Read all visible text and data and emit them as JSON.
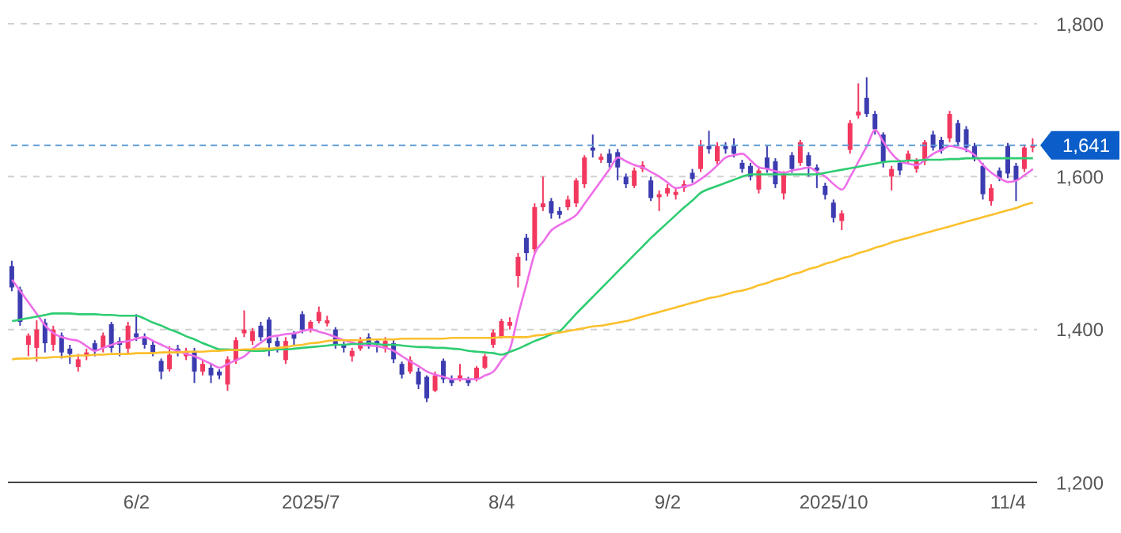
{
  "chart_data": {
    "type": "candlestick",
    "categories": [
      null,
      null,
      null,
      null,
      null,
      null,
      null,
      null,
      null,
      null,
      null,
      null,
      null,
      null,
      null,
      "6/2",
      null,
      null,
      null,
      null,
      null,
      null,
      null,
      null,
      null,
      null,
      null,
      null,
      null,
      null,
      null,
      null,
      null,
      null,
      null,
      null,
      "2025/7",
      null,
      null,
      null,
      null,
      null,
      null,
      null,
      null,
      null,
      null,
      null,
      null,
      null,
      null,
      null,
      null,
      null,
      null,
      null,
      null,
      null,
      null,
      "8/4",
      null,
      null,
      null,
      null,
      null,
      null,
      null,
      null,
      null,
      null,
      null,
      null,
      null,
      null,
      null,
      null,
      null,
      null,
      null,
      "9/2",
      null,
      null,
      null,
      null,
      null,
      null,
      null,
      null,
      null,
      null,
      null,
      null,
      null,
      null,
      null,
      null,
      null,
      null,
      null,
      "2025/10",
      null,
      null,
      null,
      null,
      null,
      null,
      null,
      null,
      null,
      null,
      null,
      null,
      null,
      null,
      null,
      null,
      null,
      null,
      null,
      null,
      "11/4",
      null,
      null,
      null
    ],
    "ohlc": [
      [
        1483,
        1490,
        1450,
        1455
      ],
      [
        1452,
        1456,
        1405,
        1410
      ],
      [
        1380,
        1395,
        1365,
        1392
      ],
      [
        1376,
        1412,
        1358,
        1400
      ],
      [
        1409,
        1414,
        1370,
        1382
      ],
      [
        1380,
        1405,
        1372,
        1400
      ],
      [
        1392,
        1396,
        1362,
        1370
      ],
      [
        1375,
        1380,
        1355,
        1368
      ],
      [
        1351,
        1368,
        1345,
        1361
      ],
      [
        1365,
        1375,
        1360,
        1370
      ],
      [
        1382,
        1386,
        1365,
        1372
      ],
      [
        1376,
        1396,
        1370,
        1392
      ],
      [
        1407,
        1410,
        1370,
        1376
      ],
      [
        1385,
        1390,
        1365,
        1380
      ],
      [
        1375,
        1410,
        1368,
        1405
      ],
      [
        1395,
        1420,
        1385,
        1390
      ],
      [
        1390,
        1395,
        1375,
        1380
      ],
      [
        1380,
        1384,
        1365,
        1370
      ],
      [
        1359,
        1362,
        1335,
        1345
      ],
      [
        1348,
        1378,
        1345,
        1367
      ],
      [
        1375,
        1380,
        1365,
        1370
      ],
      [
        1365,
        1376,
        1360,
        1372
      ],
      [
        1372,
        1376,
        1330,
        1345
      ],
      [
        1345,
        1360,
        1340,
        1355
      ],
      [
        1350,
        1355,
        1330,
        1340
      ],
      [
        1345,
        1348,
        1335,
        1340
      ],
      [
        1328,
        1365,
        1320,
        1361
      ],
      [
        1359,
        1390,
        1355,
        1386
      ],
      [
        1395,
        1425,
        1390,
        1400
      ],
      [
        1385,
        1402,
        1380,
        1398
      ],
      [
        1405,
        1410,
        1385,
        1390
      ],
      [
        1413,
        1416,
        1365,
        1382
      ],
      [
        1385,
        1390,
        1370,
        1378
      ],
      [
        1360,
        1390,
        1355,
        1385
      ],
      [
        1395,
        1398,
        1380,
        1388
      ],
      [
        1420,
        1424,
        1395,
        1400
      ],
      [
        1400,
        1412,
        1396,
        1410
      ],
      [
        1411,
        1430,
        1408,
        1423
      ],
      [
        1408,
        1418,
        1404,
        1412
      ],
      [
        1400,
        1403,
        1375,
        1380
      ],
      [
        1380,
        1384,
        1370,
        1376
      ],
      [
        1365,
        1376,
        1358,
        1372
      ],
      [
        1375,
        1390,
        1372,
        1385
      ],
      [
        1390,
        1395,
        1375,
        1380
      ],
      [
        1385,
        1388,
        1370,
        1380
      ],
      [
        1375,
        1390,
        1370,
        1385
      ],
      [
        1382,
        1386,
        1356,
        1361
      ],
      [
        1355,
        1358,
        1336,
        1341
      ],
      [
        1345,
        1365,
        1342,
        1360
      ],
      [
        1345,
        1350,
        1322,
        1328
      ],
      [
        1338,
        1340,
        1305,
        1310
      ],
      [
        1320,
        1345,
        1318,
        1340
      ],
      [
        1359,
        1362,
        1330,
        1335
      ],
      [
        1335,
        1340,
        1326,
        1330
      ],
      [
        1335,
        1355,
        1332,
        1340
      ],
      [
        1335,
        1338,
        1326,
        1330
      ],
      [
        1335,
        1352,
        1332,
        1350
      ],
      [
        1350,
        1368,
        1348,
        1365
      ],
      [
        1380,
        1400,
        1376,
        1396
      ],
      [
        1390,
        1414,
        1388,
        1411
      ],
      [
        1405,
        1416,
        1400,
        1410
      ],
      [
        1470,
        1500,
        1455,
        1495
      ],
      [
        1520,
        1525,
        1490,
        1500
      ],
      [
        1505,
        1565,
        1500,
        1560
      ],
      [
        1560,
        1600,
        1555,
        1565
      ],
      [
        1568,
        1572,
        1545,
        1552
      ],
      [
        1555,
        1560,
        1545,
        1550
      ],
      [
        1560,
        1575,
        1556,
        1570
      ],
      [
        1565,
        1598,
        1560,
        1595
      ],
      [
        1590,
        1628,
        1585,
        1625
      ],
      [
        1638,
        1655,
        1625,
        1634
      ],
      [
        1622,
        1630,
        1618,
        1626
      ],
      [
        1630,
        1636,
        1612,
        1618
      ],
      [
        1632,
        1636,
        1595,
        1612
      ],
      [
        1600,
        1604,
        1585,
        1590
      ],
      [
        1588,
        1612,
        1585,
        1608
      ],
      [
        1610,
        1620,
        1606,
        1615
      ],
      [
        1595,
        1600,
        1568,
        1572
      ],
      [
        1573,
        1582,
        1555,
        1577
      ],
      [
        1578,
        1590,
        1574,
        1585
      ],
      [
        1576,
        1584,
        1570,
        1580
      ],
      [
        1585,
        1595,
        1580,
        1590
      ],
      [
        1605,
        1610,
        1592,
        1597
      ],
      [
        1610,
        1648,
        1606,
        1640
      ],
      [
        1640,
        1660,
        1630,
        1636
      ],
      [
        1620,
        1645,
        1615,
        1640
      ],
      [
        1640,
        1645,
        1630,
        1636
      ],
      [
        1640,
        1650,
        1625,
        1630
      ],
      [
        1618,
        1622,
        1605,
        1610
      ],
      [
        1614,
        1618,
        1595,
        1600
      ],
      [
        1583,
        1612,
        1578,
        1608
      ],
      [
        1625,
        1640,
        1605,
        1610
      ],
      [
        1620,
        1624,
        1585,
        1590
      ],
      [
        1578,
        1607,
        1570,
        1603
      ],
      [
        1628,
        1632,
        1605,
        1610
      ],
      [
        1618,
        1648,
        1614,
        1645
      ],
      [
        1628,
        1632,
        1600,
        1614
      ],
      [
        1612,
        1616,
        1585,
        1608
      ],
      [
        1588,
        1592,
        1570,
        1576
      ],
      [
        1566,
        1570,
        1540,
        1546
      ],
      [
        1542,
        1556,
        1530,
        1552
      ],
      [
        1635,
        1674,
        1630,
        1670
      ],
      [
        1680,
        1722,
        1676,
        1685
      ],
      [
        1703,
        1730,
        1678,
        1682
      ],
      [
        1682,
        1686,
        1655,
        1662
      ],
      [
        1655,
        1658,
        1612,
        1618
      ],
      [
        1600,
        1614,
        1582,
        1610
      ],
      [
        1618,
        1622,
        1602,
        1608
      ],
      [
        1620,
        1634,
        1616,
        1630
      ],
      [
        1610,
        1624,
        1605,
        1620
      ],
      [
        1620,
        1648,
        1615,
        1645
      ],
      [
        1655,
        1660,
        1634,
        1638
      ],
      [
        1648,
        1652,
        1630,
        1634
      ],
      [
        1650,
        1686,
        1645,
        1682
      ],
      [
        1670,
        1674,
        1640,
        1645
      ],
      [
        1662,
        1666,
        1632,
        1638
      ],
      [
        1640,
        1644,
        1620,
        1625
      ],
      [
        1614,
        1618,
        1570,
        1577
      ],
      [
        1568,
        1590,
        1562,
        1585
      ],
      [
        1608,
        1612,
        1594,
        1598
      ],
      [
        1640,
        1644,
        1598,
        1604
      ],
      [
        1614,
        1618,
        1568,
        1595
      ],
      [
        1610,
        1642,
        1606,
        1638
      ],
      [
        1638,
        1650,
        1632,
        1641
      ]
    ],
    "colors": [
      "#3b3cb0",
      "#3b3cb0",
      "#f2385f",
      "#f2385f",
      "#3b3cb0",
      "#f2385f",
      "#3b3cb0",
      "#3b3cb0",
      "#f2385f",
      "#f2385f",
      "#3b3cb0",
      "#f2385f",
      "#3b3cb0",
      "#3b3cb0",
      "#f2385f",
      "#3b3cb0",
      "#3b3cb0",
      "#3b3cb0",
      "#3b3cb0",
      "#f2385f",
      "#3b3cb0",
      "#f2385f",
      "#3b3cb0",
      "#f2385f",
      "#3b3cb0",
      "#3b3cb0",
      "#f2385f",
      "#f2385f",
      "#f2385f",
      "#f2385f",
      "#3b3cb0",
      "#3b3cb0",
      "#3b3cb0",
      "#f2385f",
      "#3b3cb0",
      "#3b3cb0",
      "#f2385f",
      "#f2385f",
      "#f2385f",
      "#3b3cb0",
      "#3b3cb0",
      "#f2385f",
      "#f2385f",
      "#3b3cb0",
      "#3b3cb0",
      "#f2385f",
      "#3b3cb0",
      "#3b3cb0",
      "#f2385f",
      "#3b3cb0",
      "#3b3cb0",
      "#f2385f",
      "#3b3cb0",
      "#3b3cb0",
      "#f2385f",
      "#3b3cb0",
      "#f2385f",
      "#f2385f",
      "#f2385f",
      "#f2385f",
      "#f2385f",
      "#f2385f",
      "#3b3cb0",
      "#f2385f",
      "#f2385f",
      "#3b3cb0",
      "#3b3cb0",
      "#f2385f",
      "#f2385f",
      "#f2385f",
      "#3b3cb0",
      "#f2385f",
      "#3b3cb0",
      "#3b3cb0",
      "#3b3cb0",
      "#f2385f",
      "#f2385f",
      "#3b3cb0",
      "#f2385f",
      "#f2385f",
      "#f2385f",
      "#f2385f",
      "#3b3cb0",
      "#f2385f",
      "#3b3cb0",
      "#f2385f",
      "#3b3cb0",
      "#3b3cb0",
      "#3b3cb0",
      "#3b3cb0",
      "#f2385f",
      "#3b3cb0",
      "#3b3cb0",
      "#f2385f",
      "#3b3cb0",
      "#f2385f",
      "#3b3cb0",
      "#3b3cb0",
      "#3b3cb0",
      "#3b3cb0",
      "#f2385f",
      "#f2385f",
      "#f2385f",
      "#3b3cb0",
      "#3b3cb0",
      "#3b3cb0",
      "#f2385f",
      "#3b3cb0",
      "#f2385f",
      "#f2385f",
      "#f2385f",
      "#3b3cb0",
      "#3b3cb0",
      "#f2385f",
      "#3b3cb0",
      "#3b3cb0",
      "#3b3cb0",
      "#3b3cb0",
      "#f2385f",
      "#3b3cb0",
      "#3b3cb0",
      "#3b3cb0",
      "#f2385f",
      "#f2385f"
    ],
    "series": [
      {
        "type": "line",
        "color": "#ee6ee8",
        "values": [
          1465,
          1450,
          1435,
          1420,
          1405,
          1395,
          1390,
          1387,
          1385,
          1378,
          1372,
          1376,
          1380,
          1383,
          1385,
          1388,
          1390,
          1385,
          1380,
          1375,
          1372,
          1368,
          1365,
          1360,
          1355,
          1350,
          1355,
          1360,
          1365,
          1375,
          1383,
          1390,
          1392,
          1394,
          1395,
          1398,
          1400,
          1397,
          1394,
          1390,
          1386,
          1383,
          1380,
          1379,
          1378,
          1376,
          1372,
          1365,
          1358,
          1352,
          1345,
          1341,
          1338,
          1335,
          1335,
          1335,
          1335,
          1340,
          1345,
          1360,
          1375,
          1420,
          1460,
          1500,
          1515,
          1530,
          1537,
          1543,
          1550,
          1565,
          1580,
          1595,
          1610,
          1625,
          1620,
          1615,
          1612,
          1606,
          1600,
          1592,
          1585,
          1587,
          1590,
          1597,
          1605,
          1615,
          1625,
          1628,
          1630,
          1621,
          1612,
          1610,
          1607,
          1605,
          1608,
          1610,
          1612,
          1606,
          1600,
          1590,
          1583,
          1600,
          1620,
          1640,
          1661,
          1645,
          1630,
          1620,
          1617,
          1615,
          1622,
          1630,
          1635,
          1640,
          1638,
          1635,
          1628,
          1615,
          1605,
          1598,
          1593,
          1595,
          1602,
          1610
        ]
      },
      {
        "type": "line",
        "color": "#2ecc71",
        "values": [
          1411,
          1413,
          1415,
          1417,
          1419,
          1421,
          1421,
          1421,
          1420,
          1420,
          1420,
          1419,
          1419,
          1418,
          1418,
          1418,
          1414,
          1409,
          1405,
          1400,
          1396,
          1391,
          1387,
          1382,
          1378,
          1374,
          1374,
          1373,
          1373,
          1372,
          1372,
          1373,
          1374,
          1374,
          1375,
          1376,
          1377,
          1378,
          1379,
          1380,
          1380,
          1381,
          1381,
          1382,
          1381,
          1380,
          1380,
          1379,
          1378,
          1377,
          1377,
          1376,
          1376,
          1375,
          1374,
          1372,
          1371,
          1370,
          1369,
          1367,
          1371,
          1375,
          1380,
          1385,
          1389,
          1394,
          1398,
          1409,
          1421,
          1432,
          1443,
          1454,
          1465,
          1476,
          1487,
          1498,
          1509,
          1520,
          1530,
          1540,
          1550,
          1560,
          1569,
          1579,
          1584,
          1588,
          1592,
          1596,
          1600,
          1603,
          1603,
          1603,
          1603,
          1603,
          1603,
          1603,
          1603,
          1603,
          1605,
          1607,
          1609,
          1611,
          1613,
          1615,
          1617,
          1619,
          1620,
          1620,
          1621,
          1621,
          1622,
          1622,
          1622,
          1623,
          1623,
          1624,
          1624,
          1624,
          1624,
          1624,
          1624,
          1624,
          1624,
          1624
        ]
      },
      {
        "type": "line",
        "color": "#fbc02d",
        "values": [
          1361,
          1362,
          1362,
          1363,
          1363,
          1364,
          1364,
          1365,
          1366,
          1366,
          1367,
          1367,
          1368,
          1368,
          1368,
          1369,
          1369,
          1369,
          1370,
          1370,
          1370,
          1371,
          1371,
          1371,
          1372,
          1372,
          1373,
          1373,
          1374,
          1374,
          1375,
          1375,
          1376,
          1377,
          1379,
          1380,
          1382,
          1383,
          1385,
          1386,
          1386,
          1386,
          1386,
          1387,
          1387,
          1387,
          1387,
          1388,
          1388,
          1388,
          1388,
          1388,
          1388,
          1389,
          1389,
          1389,
          1389,
          1389,
          1389,
          1390,
          1390,
          1390,
          1390,
          1392,
          1393,
          1395,
          1396,
          1398,
          1400,
          1402,
          1404,
          1405,
          1407,
          1409,
          1411,
          1414,
          1417,
          1420,
          1423,
          1426,
          1429,
          1432,
          1435,
          1438,
          1441,
          1443,
          1446,
          1449,
          1451,
          1454,
          1458,
          1461,
          1465,
          1468,
          1472,
          1475,
          1479,
          1482,
          1486,
          1489,
          1493,
          1496,
          1500,
          1503,
          1507,
          1510,
          1514,
          1517,
          1520,
          1523,
          1526,
          1529,
          1532,
          1535,
          1538,
          1541,
          1544,
          1547,
          1550,
          1553,
          1556,
          1559,
          1563,
          1566
        ]
      }
    ],
    "ylim": [
      1200,
      1800
    ],
    "yticks": [
      {
        "value": 1200,
        "label": "1,200"
      },
      {
        "value": 1400,
        "label": "1,400"
      },
      {
        "value": 1600,
        "label": "1,600"
      },
      {
        "value": 1800,
        "label": "1,800"
      }
    ],
    "grid": "y",
    "ref_lines": [
      {
        "axis": "y",
        "value": 1641,
        "label": "1,641",
        "color": "#5b9bd5",
        "line_style": "dashed"
      }
    ]
  }
}
